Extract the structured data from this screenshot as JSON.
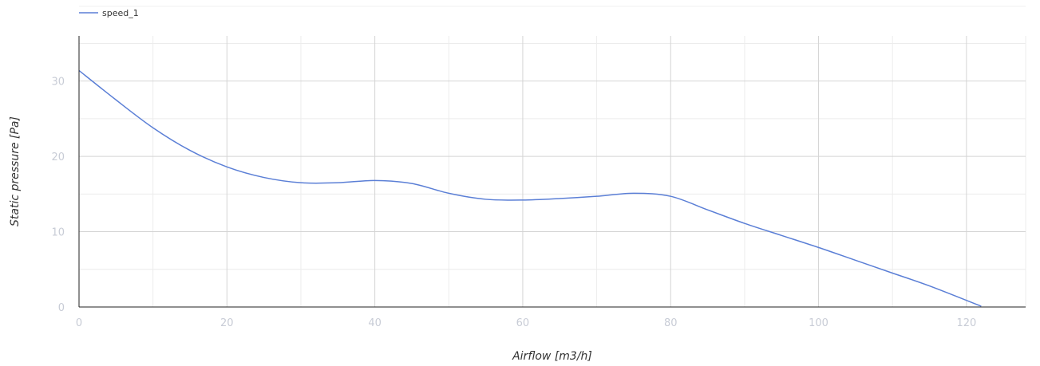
{
  "chart_data": {
    "type": "line",
    "title": "",
    "xlabel": "Airflow [m3/h]",
    "ylabel": "Static pressure [Pa]",
    "xlim": [
      0,
      128
    ],
    "ylim": [
      0,
      36
    ],
    "x_ticks": [
      0,
      20,
      40,
      60,
      80,
      100,
      120
    ],
    "y_ticks": [
      0,
      10,
      20,
      30
    ],
    "x_minor_grid": [
      10,
      30,
      50,
      70,
      90,
      110,
      128
    ],
    "y_minor_grid": [
      5,
      15,
      25,
      35
    ],
    "grid": true,
    "legend_position": "top-left",
    "colors": {
      "series": "#5b7fd6",
      "grid_major": "#d4d4d4",
      "grid_minor": "#ececec",
      "axis": "#222222",
      "tick_label": "#c8ccd6"
    },
    "series": [
      {
        "name": "speed_1",
        "x": [
          0,
          5,
          10,
          15,
          20,
          25,
          30,
          35,
          40,
          45,
          50,
          55,
          60,
          65,
          70,
          75,
          80,
          85,
          90,
          95,
          100,
          105,
          110,
          115,
          122
        ],
        "y": [
          31.4,
          27.5,
          23.8,
          20.8,
          18.6,
          17.2,
          16.5,
          16.5,
          16.8,
          16.4,
          15.1,
          14.3,
          14.2,
          14.4,
          14.7,
          15.1,
          14.7,
          12.9,
          11.1,
          9.5,
          7.9,
          6.2,
          4.5,
          2.8,
          0.1
        ]
      }
    ]
  }
}
